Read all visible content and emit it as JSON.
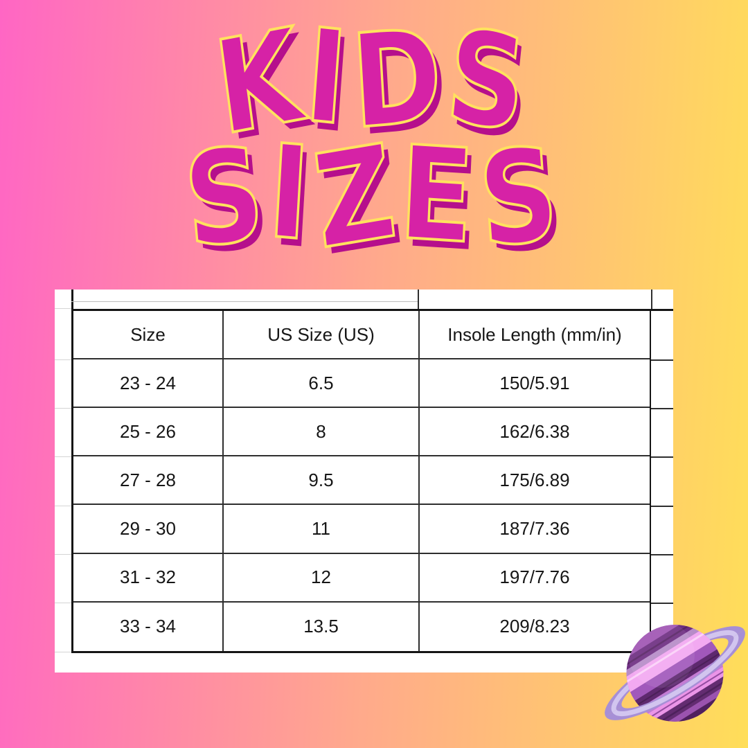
{
  "title": {
    "line1": "KIDS",
    "line2": "SIZES"
  },
  "table": {
    "columns": [
      "Size",
      "US Size (US)",
      "Insole Length (mm/in)"
    ],
    "rows": [
      [
        "23 - 24",
        "6.5",
        "150/5.91"
      ],
      [
        "25 - 26",
        "8",
        "162/6.38"
      ],
      [
        "27 - 28",
        "9.5",
        "175/6.89"
      ],
      [
        "29 - 30",
        "11",
        "187/7.36"
      ],
      [
        "31 - 32",
        "12",
        "197/7.76"
      ],
      [
        "33 - 34",
        "13.5",
        "209/8.23"
      ]
    ]
  },
  "colors": {
    "background_left": "#FF66C4",
    "background_right": "#FFDE59",
    "title_fill": "#D622A6",
    "title_outline": "#FFE25E",
    "title_shadow": "#B50F8C",
    "card_background": "#FFFFFF",
    "table_line": "#2E2E2E",
    "planet_ring": "#A78FD6",
    "planet_sphere": "#9B58B4"
  }
}
